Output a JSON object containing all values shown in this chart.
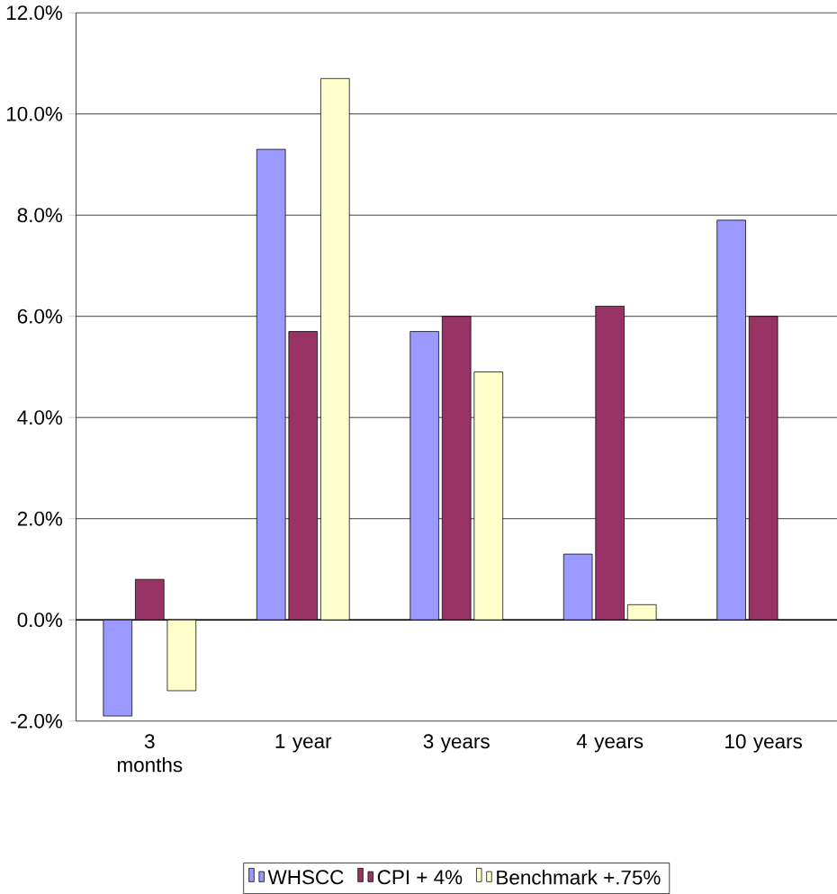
{
  "chart_data": {
    "type": "bar",
    "categories": [
      "3 months",
      "1 year",
      "3 years",
      "4 years",
      "10 years"
    ],
    "series": [
      {
        "name": "WHSCC",
        "color": "#9999ff",
        "values": [
          -1.9,
          9.3,
          5.7,
          1.3,
          7.9
        ]
      },
      {
        "name": "CPI + 4%",
        "color": "#993366",
        "values": [
          0.8,
          5.7,
          6.0,
          6.2,
          6.0
        ]
      },
      {
        "name": "Benchmark +.75%",
        "color": "#ffffcc",
        "values": [
          -1.4,
          10.7,
          4.9,
          0.3,
          null
        ]
      }
    ],
    "ylim": [
      -2,
      12
    ],
    "yticks": [
      {
        "value": -2,
        "label": "-2.0%"
      },
      {
        "value": 0,
        "label": "0.0%"
      },
      {
        "value": 2,
        "label": "2.0%"
      },
      {
        "value": 4,
        "label": "4.0%"
      },
      {
        "value": 6,
        "label": "6.0%"
      },
      {
        "value": 8,
        "label": "8.0%"
      },
      {
        "value": 10,
        "label": "10.0%"
      },
      {
        "value": 12,
        "label": "12.0%"
      }
    ],
    "grid": "y",
    "legend": "bottom"
  }
}
